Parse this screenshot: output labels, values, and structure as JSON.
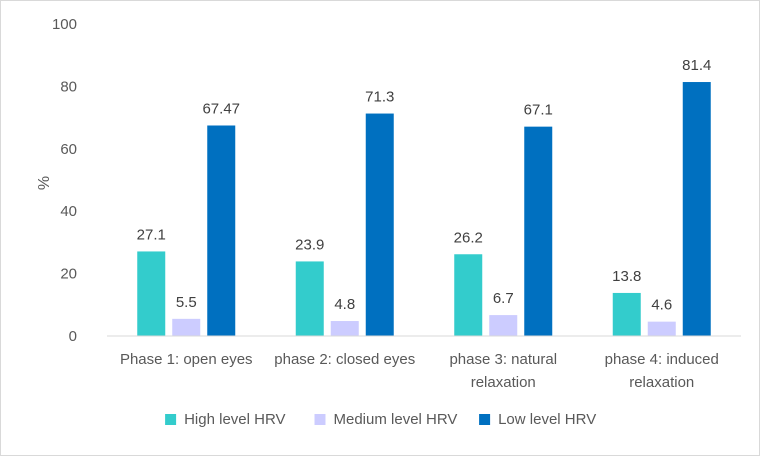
{
  "chart_data": {
    "type": "bar",
    "title": "",
    "xlabel": "",
    "ylabel": "%",
    "ylim": [
      0,
      100
    ],
    "yticks": [
      0,
      20,
      40,
      60,
      80,
      100
    ],
    "grid": false,
    "legend_position": "bottom",
    "categories": [
      [
        "Phase 1: open eyes"
      ],
      [
        "phase 2: closed eyes"
      ],
      [
        "phase 3: natural",
        "relaxation"
      ],
      [
        "phase 4: induced",
        "relaxation"
      ]
    ],
    "series": [
      {
        "name": "High level HRV",
        "color": "#33cccc",
        "values": [
          27.1,
          23.9,
          26.2,
          13.8
        ],
        "labels": [
          "27.1",
          "23.9",
          "26.2",
          "13.8"
        ]
      },
      {
        "name": "Medium level HRV",
        "color": "#ccccff",
        "values": [
          5.5,
          4.8,
          6.7,
          4.6
        ],
        "labels": [
          "5.5",
          "4.8",
          "6.7",
          "4.6"
        ]
      },
      {
        "name": "Low level HRV",
        "color": "#0070c0",
        "values": [
          67.47,
          71.3,
          67.1,
          81.4
        ],
        "labels": [
          "67.47",
          "71.3",
          "67.1",
          "81.4"
        ]
      }
    ]
  }
}
